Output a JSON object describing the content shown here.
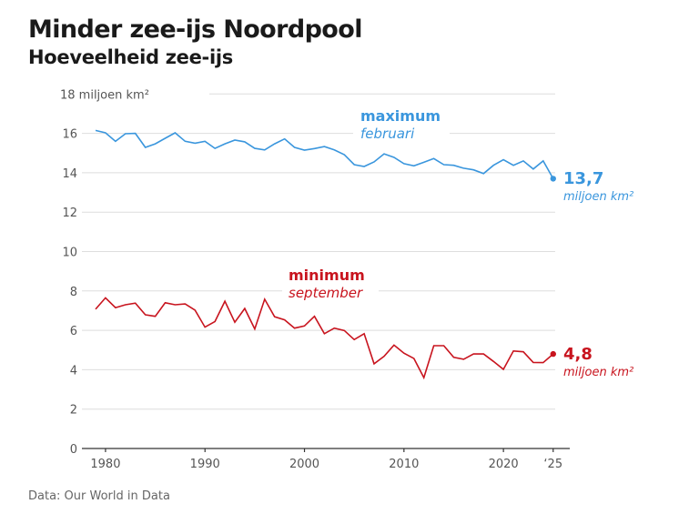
{
  "header": {
    "title": "Minder zee-ijs Noordpool",
    "subtitle": "Hoeveelheid zee-ijs"
  },
  "footer": {
    "source": "Data: Our World in Data"
  },
  "colors": {
    "maximum": "#3a96dd",
    "minimum": "#c8141e",
    "grid": "#dedede",
    "axis": "#333333",
    "text": "#555555"
  },
  "chart_data": {
    "type": "line",
    "title": "Minder zee-ijs Noordpool",
    "subtitle": "Hoeveelheid zee-ijs",
    "xlabel": "",
    "ylabel": "miljoen km²",
    "ylim": [
      0,
      18
    ],
    "xlim": [
      1979,
      2025
    ],
    "grid": true,
    "y_ticks": [
      0,
      2,
      4,
      6,
      8,
      10,
      12,
      14,
      16,
      18
    ],
    "y_tick_labels": [
      "0",
      "2",
      "4",
      "6",
      "8",
      "10",
      "12",
      "14",
      "16",
      "18 miljoen km²"
    ],
    "x_ticks": [
      1980,
      1990,
      2000,
      2010,
      2020,
      2025
    ],
    "x_tick_labels": [
      "1980",
      "1990",
      "2000",
      "2010",
      "2020",
      "‘25"
    ],
    "x": [
      1979,
      1980,
      1981,
      1982,
      1983,
      1984,
      1985,
      1986,
      1987,
      1988,
      1989,
      1990,
      1991,
      1992,
      1993,
      1994,
      1995,
      1996,
      1997,
      1998,
      1999,
      2000,
      2001,
      2002,
      2003,
      2004,
      2005,
      2006,
      2007,
      2008,
      2009,
      2010,
      2011,
      2012,
      2013,
      2014,
      2015,
      2016,
      2017,
      2018,
      2019,
      2020,
      2021,
      2022,
      2023,
      2024,
      2025
    ],
    "series": [
      {
        "name": "maximum",
        "label": "maximum",
        "sublabel": "februari",
        "color": "#3a96dd",
        "values": [
          16.15,
          16.03,
          15.6,
          15.98,
          16.0,
          15.29,
          15.47,
          15.75,
          16.03,
          15.6,
          15.5,
          15.6,
          15.24,
          15.47,
          15.66,
          15.57,
          15.24,
          15.16,
          15.47,
          15.72,
          15.29,
          15.15,
          15.23,
          15.33,
          15.16,
          14.92,
          14.41,
          14.32,
          14.55,
          14.96,
          14.78,
          14.46,
          14.35,
          14.53,
          14.72,
          14.41,
          14.38,
          14.23,
          14.15,
          13.96,
          14.38,
          14.66,
          14.38,
          14.6,
          14.19,
          14.6,
          13.7
        ],
        "end_value_label": "13,7",
        "end_unit_label": "miljoen km²"
      },
      {
        "name": "minimum",
        "label": "minimum",
        "sublabel": "september",
        "color": "#c8141e",
        "values": [
          7.07,
          7.65,
          7.15,
          7.3,
          7.38,
          6.79,
          6.71,
          7.4,
          7.3,
          7.34,
          7.02,
          6.16,
          6.45,
          7.48,
          6.41,
          7.11,
          6.07,
          7.58,
          6.69,
          6.53,
          6.11,
          6.22,
          6.71,
          5.83,
          6.11,
          5.99,
          5.53,
          5.83,
          4.3,
          4.68,
          5.25,
          4.84,
          4.57,
          3.6,
          5.22,
          5.22,
          4.63,
          4.53,
          4.8,
          4.8,
          4.42,
          4.02,
          4.95,
          4.91,
          4.37,
          4.36,
          4.8
        ],
        "end_value_label": "4,8",
        "end_unit_label": "miljoen km²"
      }
    ],
    "annotations": [
      {
        "series": "maximum",
        "text": "maximum",
        "subtext": "februari"
      },
      {
        "series": "minimum",
        "text": "minimum",
        "subtext": "september"
      }
    ],
    "legend": "inline-labels"
  }
}
